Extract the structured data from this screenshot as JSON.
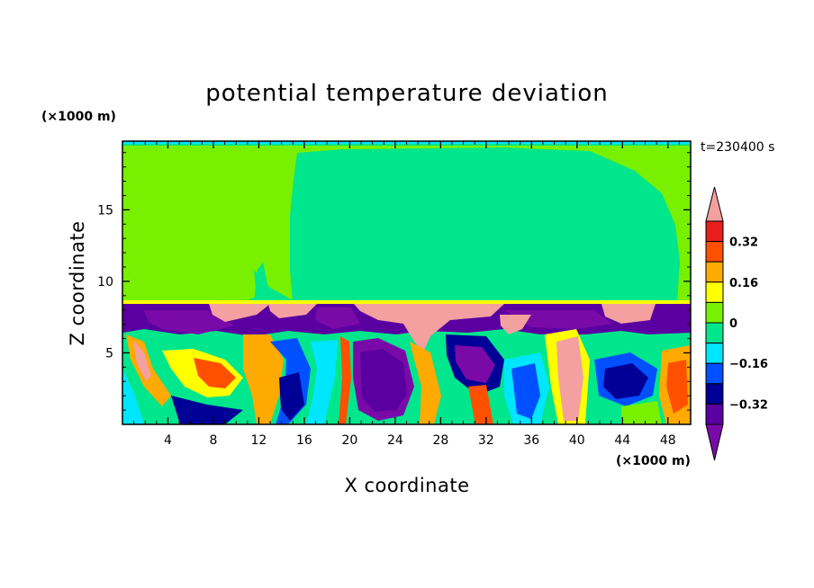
{
  "chart_data": {
    "type": "heatmap",
    "title": "potential temperature deviation",
    "xlabel": "X coordinate",
    "ylabel": "Z coordinate",
    "x_unit": "(×1000 m)",
    "y_unit": "(×1000 m)",
    "time_label": "t=230400 s",
    "xlim": [
      0,
      50
    ],
    "ylim": [
      0,
      19.8
    ],
    "x_ticks": [
      "4",
      "8",
      "12",
      "16",
      "20",
      "24",
      "28",
      "32",
      "36",
      "40",
      "44",
      "48"
    ],
    "y_ticks": [
      "5",
      "10",
      "15"
    ],
    "colorbar": {
      "levels": [
        {
          "max": -0.4,
          "color": "#7a0aa8"
        },
        {
          "min": -0.4,
          "max": -0.32,
          "color": "#5a00a0"
        },
        {
          "min": -0.32,
          "max": -0.24,
          "color": "#000096"
        },
        {
          "min": -0.24,
          "max": -0.16,
          "color": "#0050ff"
        },
        {
          "min": -0.16,
          "max": -0.08,
          "color": "#00e6ff"
        },
        {
          "min": -0.08,
          "max": 0,
          "color": "#00e68c"
        },
        {
          "min": 0,
          "max": 0.08,
          "color": "#78f000"
        },
        {
          "min": 0.08,
          "max": 0.16,
          "color": "#ffff00"
        },
        {
          "min": 0.16,
          "max": 0.24,
          "color": "#ffaa00"
        },
        {
          "min": 0.24,
          "max": 0.32,
          "color": "#ff5000"
        },
        {
          "min": 0.32,
          "max": 0.4,
          "color": "#e61e1e"
        },
        {
          "min": 0.4,
          "color": "#f4a0a0"
        }
      ],
      "tick_labels": [
        "0.32",
        "0.16",
        "0",
        "−0.16",
        "−0.32"
      ]
    }
  }
}
